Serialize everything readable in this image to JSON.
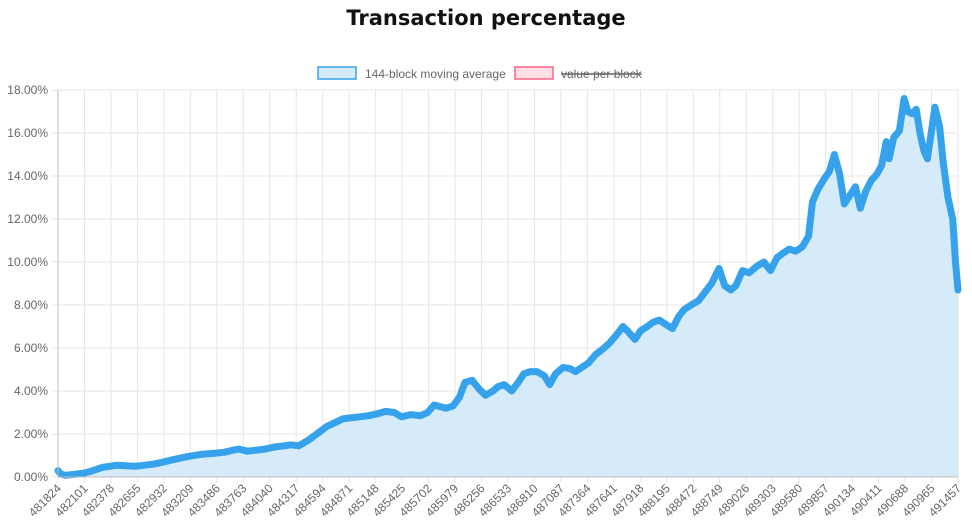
{
  "chart_data": {
    "type": "area",
    "title": "Transaction percentage",
    "legend": {
      "placement": "top",
      "entries": [
        {
          "label": "144-block moving average",
          "hidden": false
        },
        {
          "label": "value per block",
          "hidden": true
        }
      ]
    },
    "colors": {
      "line": "#36a2eb",
      "fill": "#d6ebf9",
      "hidden_series_border": "#ff6384",
      "hidden_series_fill": "#ffe0e6",
      "grid": "#e6e6e6",
      "axis": "#bdbdbd",
      "text": "#666666"
    },
    "grid": true,
    "ylim": [
      0,
      18
    ],
    "y_ticks": [
      "0.00%",
      "2.00%",
      "4.00%",
      "6.00%",
      "8.00%",
      "10.00%",
      "12.00%",
      "14.00%",
      "16.00%",
      "18.00%"
    ],
    "x_ticks": [
      "481824",
      "482101",
      "482378",
      "482655",
      "482932",
      "483209",
      "483486",
      "483763",
      "484040",
      "484317",
      "484594",
      "484871",
      "485148",
      "485425",
      "485702",
      "485979",
      "486256",
      "486533",
      "486810",
      "487087",
      "487364",
      "487641",
      "487918",
      "488195",
      "488472",
      "488749",
      "489026",
      "489303",
      "489580",
      "489857",
      "490134",
      "490411",
      "490688",
      "490965",
      "491457"
    ],
    "xlim": [
      481824,
      491457
    ],
    "series": [
      {
        "name": "144-block moving average",
        "x": [
          481824,
          481850,
          481900,
          482000,
          482101,
          482200,
          482300,
          482378,
          482450,
          482550,
          482655,
          482750,
          482850,
          482932,
          483050,
          483209,
          483350,
          483486,
          483600,
          483700,
          483763,
          483850,
          483950,
          484040,
          484150,
          484250,
          484317,
          484400,
          484500,
          484594,
          484700,
          484800,
          484871,
          484950,
          485050,
          485148,
          485250,
          485330,
          485425,
          485500,
          485600,
          485702,
          485780,
          485850,
          485979,
          486050,
          486120,
          486180,
          486256,
          486330,
          486400,
          486480,
          486533,
          486600,
          486680,
          486750,
          486810,
          486880,
          486950,
          487030,
          487087,
          487150,
          487230,
          487300,
          487364,
          487430,
          487500,
          487580,
          487641,
          487720,
          487800,
          487870,
          487918,
          488000,
          488060,
          488130,
          488195,
          488260,
          488330,
          488400,
          488472,
          488530,
          488600,
          488680,
          488749,
          488820,
          488900,
          488960,
          489026,
          489080,
          489150,
          489220,
          489303,
          489380,
          489450,
          489520,
          489580,
          489650,
          489720,
          489790,
          489857,
          489900,
          489960,
          490030,
          490080,
          490134,
          490190,
          490240,
          490300,
          490360,
          490411,
          490470,
          490530,
          490590,
          490640,
          490688,
          490720,
          490770,
          490830,
          490880,
          490920,
          490965,
          491010,
          491050,
          491090,
          491130,
          491170,
          491210,
          491260,
          491300,
          491350,
          491400,
          491430,
          491457
        ],
        "values": [
          0.3,
          0.15,
          0.08,
          0.12,
          0.18,
          0.3,
          0.45,
          0.5,
          0.55,
          0.52,
          0.5,
          0.55,
          0.6,
          0.68,
          0.8,
          0.95,
          1.05,
          1.1,
          1.15,
          1.25,
          1.3,
          1.2,
          1.25,
          1.3,
          1.4,
          1.45,
          1.5,
          1.45,
          1.7,
          2.0,
          2.35,
          2.55,
          2.7,
          2.75,
          2.8,
          2.85,
          2.95,
          3.05,
          3.0,
          2.8,
          2.9,
          2.85,
          3.0,
          3.35,
          3.2,
          3.3,
          3.7,
          4.4,
          4.5,
          4.1,
          3.8,
          4.0,
          4.2,
          4.3,
          4.0,
          4.4,
          4.8,
          4.9,
          4.9,
          4.7,
          4.3,
          4.8,
          5.1,
          5.05,
          4.9,
          5.1,
          5.3,
          5.7,
          5.9,
          6.2,
          6.6,
          7.0,
          6.8,
          6.4,
          6.8,
          7.0,
          7.2,
          7.3,
          7.1,
          6.9,
          7.5,
          7.8,
          8.0,
          8.2,
          8.6,
          9.0,
          9.7,
          8.9,
          8.7,
          8.9,
          9.6,
          9.5,
          9.8,
          10.0,
          9.6,
          10.2,
          10.4,
          10.6,
          10.5,
          10.7,
          11.2,
          12.8,
          13.4,
          13.9,
          14.2,
          15.0,
          14.1,
          12.7,
          13.1,
          13.5,
          12.5,
          13.3,
          13.8,
          14.1,
          14.5,
          15.6,
          14.8,
          15.8,
          16.1,
          17.6,
          17.0,
          16.9,
          17.1,
          16.0,
          15.2,
          14.8,
          16.0,
          17.2,
          16.3,
          14.6,
          13.0,
          12.0,
          10.0,
          8.7
        ],
        "hidden": false
      },
      {
        "name": "value per block",
        "x": [],
        "values": [],
        "hidden": true
      }
    ]
  }
}
